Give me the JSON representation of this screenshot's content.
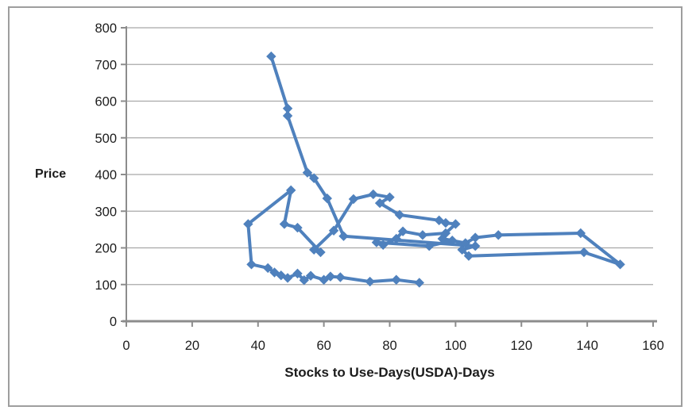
{
  "chart": {
    "y_axis_title": "Price",
    "x_axis_title": "Stocks to Use-Days(USDA)-Days",
    "colors": {
      "series": "#4F81BD",
      "gridline": "#A8A8A8",
      "axis": "#8C8C8C",
      "tick_text": "#1c1c1c",
      "border": "#9e9e9e"
    }
  },
  "chart_data": {
    "type": "line",
    "marker": "diamond",
    "legend": "none",
    "grid": "horizontal",
    "title": "",
    "xlabel": "Stocks to Use-Days(USDA)-Days",
    "ylabel": "Price",
    "xlim": [
      0,
      160
    ],
    "ylim": [
      0,
      800
    ],
    "x_ticks": [
      0,
      20,
      40,
      60,
      80,
      100,
      120,
      140,
      160
    ],
    "y_ticks": [
      0,
      100,
      200,
      300,
      400,
      500,
      600,
      700,
      800
    ],
    "points": [
      [
        89,
        105
      ],
      [
        82,
        113
      ],
      [
        74,
        108
      ],
      [
        65,
        120
      ],
      [
        62,
        122
      ],
      [
        60,
        113
      ],
      [
        56,
        124
      ],
      [
        54,
        112
      ],
      [
        52,
        130
      ],
      [
        49,
        118
      ],
      [
        47,
        125
      ],
      [
        45,
        133
      ],
      [
        43,
        145
      ],
      [
        38,
        155
      ],
      [
        37,
        265
      ],
      [
        50,
        357
      ],
      [
        48,
        265
      ],
      [
        52,
        255
      ],
      [
        59,
        188
      ],
      [
        57,
        195
      ],
      [
        63,
        247
      ],
      [
        69,
        333
      ],
      [
        75,
        346
      ],
      [
        80,
        338
      ],
      [
        77,
        322
      ],
      [
        83,
        290
      ],
      [
        95,
        275
      ],
      [
        97,
        268
      ],
      [
        100,
        265
      ],
      [
        97,
        240
      ],
      [
        90,
        235
      ],
      [
        84,
        245
      ],
      [
        82,
        225
      ],
      [
        78,
        208
      ],
      [
        76,
        215
      ],
      [
        92,
        205
      ],
      [
        99,
        220
      ],
      [
        96,
        225
      ],
      [
        103,
        213
      ],
      [
        106,
        228
      ],
      [
        113,
        235
      ],
      [
        138,
        240
      ],
      [
        150,
        155
      ],
      [
        139,
        188
      ],
      [
        104,
        178
      ],
      [
        102,
        195
      ],
      [
        106,
        205
      ],
      [
        66,
        232
      ],
      [
        61,
        335
      ],
      [
        57,
        390
      ],
      [
        55,
        405
      ],
      [
        49,
        560
      ],
      [
        49,
        580
      ],
      [
        44,
        722
      ]
    ]
  }
}
